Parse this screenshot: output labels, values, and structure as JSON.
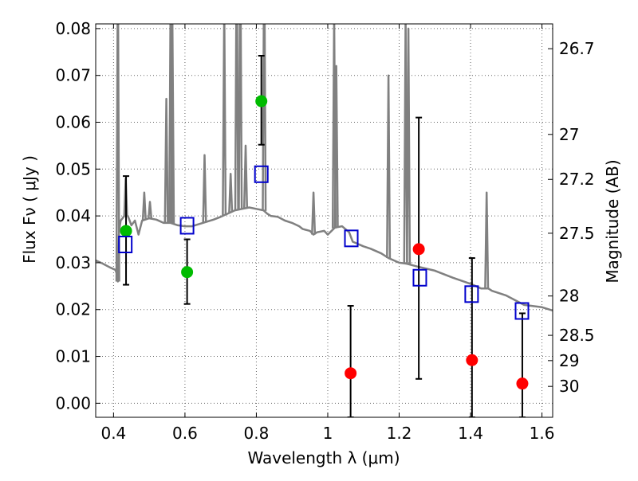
{
  "chart_data": {
    "type": "scatter",
    "title": "",
    "xlabel": "Wavelength  λ (μm)",
    "ylabel": "Flux  Fν  ( μJy )",
    "ylabel_right": "Magnitude (AB)",
    "xlim": [
      0.35,
      1.63
    ],
    "ylim": [
      -0.003,
      0.081
    ],
    "grid": true,
    "x_ticks": [
      0.4,
      0.6,
      0.8,
      1.0,
      1.2,
      1.4,
      1.6
    ],
    "x_tick_labels": [
      "0.4",
      "0.6",
      "0.8",
      "1",
      "1.2",
      "1.4",
      "1.6"
    ],
    "y_ticks": [
      0.0,
      0.01,
      0.02,
      0.03,
      0.04,
      0.05,
      0.06,
      0.07,
      0.08
    ],
    "y_tick_labels": [
      "0.00",
      "0.01",
      "0.02",
      "0.03",
      "0.04",
      "0.05",
      "0.06",
      "0.07",
      "0.08"
    ],
    "right_ticks": [
      {
        "label": "26.7",
        "flux": 0.0757
      },
      {
        "label": "27",
        "flux": 0.0574
      },
      {
        "label": "27.2",
        "flux": 0.0478
      },
      {
        "label": "27.5",
        "flux": 0.0363
      },
      {
        "label": "28",
        "flux": 0.0229
      },
      {
        "label": "28.5",
        "flux": 0.0145
      },
      {
        "label": "29",
        "flux": 0.0091
      },
      {
        "label": "30",
        "flux": 0.0036
      }
    ],
    "colors": {
      "template": "#808080",
      "model": "#0000cc",
      "detection": "#00bb00",
      "upper": "#ff0000",
      "errorbar": "#000000",
      "grid": "#666666"
    },
    "series": [
      {
        "kind": "detection",
        "points": [
          {
            "x": 0.435,
            "y": 0.0368,
            "ylo": 0.0253,
            "yhi": 0.0485
          },
          {
            "x": 0.606,
            "y": 0.028,
            "ylo": 0.0212,
            "yhi": 0.035
          },
          {
            "x": 0.814,
            "y": 0.0645,
            "ylo": 0.0552,
            "yhi": 0.0742
          }
        ]
      },
      {
        "kind": "upper",
        "points": [
          {
            "x": 1.064,
            "y": 0.0064,
            "ylo": -0.003,
            "yhi": 0.0208
          },
          {
            "x": 1.255,
            "y": 0.0329,
            "ylo": 0.0052,
            "yhi": 0.061
          },
          {
            "x": 1.404,
            "y": 0.0092,
            "ylo": -0.003,
            "yhi": 0.031
          },
          {
            "x": 1.545,
            "y": 0.0042,
            "ylo": -0.003,
            "yhi": 0.0192
          }
        ]
      },
      {
        "kind": "model",
        "points": [
          {
            "x": 0.433,
            "y": 0.0339
          },
          {
            "x": 0.606,
            "y": 0.0379
          },
          {
            "x": 0.814,
            "y": 0.0489
          },
          {
            "x": 1.066,
            "y": 0.0352
          },
          {
            "x": 1.258,
            "y": 0.0268
          },
          {
            "x": 1.403,
            "y": 0.0233
          },
          {
            "x": 1.544,
            "y": 0.0197
          }
        ]
      },
      {
        "kind": "template",
        "line": [
          [
            0.35,
            0.0305
          ],
          [
            0.37,
            0.0298
          ],
          [
            0.39,
            0.029
          ],
          [
            0.405,
            0.0285
          ],
          [
            0.41,
            0.0275
          ],
          [
            0.412,
            0.026
          ],
          [
            0.413,
            0.029
          ],
          [
            0.415,
            0.036
          ],
          [
            0.418,
            0.038
          ],
          [
            0.42,
            0.039
          ],
          [
            0.425,
            0.0395
          ],
          [
            0.43,
            0.04
          ],
          [
            0.44,
            0.04
          ],
          [
            0.45,
            0.038
          ],
          [
            0.46,
            0.039
          ],
          [
            0.47,
            0.036
          ],
          [
            0.48,
            0.039
          ],
          [
            0.5,
            0.0395
          ],
          [
            0.52,
            0.0392
          ],
          [
            0.54,
            0.0385
          ],
          [
            0.56,
            0.0385
          ],
          [
            0.58,
            0.038
          ],
          [
            0.6,
            0.0378
          ],
          [
            0.62,
            0.0378
          ],
          [
            0.65,
            0.0385
          ],
          [
            0.68,
            0.0392
          ],
          [
            0.7,
            0.0398
          ],
          [
            0.72,
            0.0405
          ],
          [
            0.74,
            0.0412
          ],
          [
            0.76,
            0.0415
          ],
          [
            0.78,
            0.0418
          ],
          [
            0.8,
            0.0415
          ],
          [
            0.82,
            0.0412
          ],
          [
            0.83,
            0.0405
          ],
          [
            0.84,
            0.04
          ],
          [
            0.86,
            0.0398
          ],
          [
            0.88,
            0.039
          ],
          [
            0.9,
            0.0385
          ],
          [
            0.92,
            0.0378
          ],
          [
            0.93,
            0.0372
          ],
          [
            0.95,
            0.0368
          ],
          [
            0.96,
            0.036
          ],
          [
            0.97,
            0.0365
          ],
          [
            0.99,
            0.0368
          ],
          [
            1.0,
            0.036
          ],
          [
            1.02,
            0.0375
          ],
          [
            1.04,
            0.0378
          ],
          [
            1.06,
            0.0365
          ],
          [
            1.07,
            0.0345
          ],
          [
            1.1,
            0.0335
          ],
          [
            1.12,
            0.033
          ],
          [
            1.15,
            0.032
          ],
          [
            1.17,
            0.031
          ],
          [
            1.2,
            0.03
          ],
          [
            1.22,
            0.0298
          ],
          [
            1.25,
            0.0292
          ],
          [
            1.3,
            0.0283
          ],
          [
            1.35,
            0.0268
          ],
          [
            1.4,
            0.0255
          ],
          [
            1.43,
            0.0245
          ],
          [
            1.45,
            0.0245
          ],
          [
            1.46,
            0.024
          ],
          [
            1.5,
            0.023
          ],
          [
            1.55,
            0.021
          ],
          [
            1.6,
            0.0205
          ],
          [
            1.63,
            0.0198
          ]
        ],
        "emission_lines": [
          [
            0.412,
            0.095
          ],
          [
            0.434,
            0.048
          ],
          [
            0.486,
            0.045
          ],
          [
            0.502,
            0.043
          ],
          [
            0.548,
            0.065
          ],
          [
            0.56,
            0.09
          ],
          [
            0.565,
            0.081
          ],
          [
            0.655,
            0.053
          ],
          [
            0.71,
            0.085
          ],
          [
            0.728,
            0.049
          ],
          [
            0.745,
            0.1
          ],
          [
            0.755,
            0.1
          ],
          [
            0.77,
            0.055
          ],
          [
            0.822,
            0.1
          ],
          [
            0.96,
            0.045
          ],
          [
            1.018,
            0.083
          ],
          [
            1.024,
            0.072
          ],
          [
            1.17,
            0.07
          ],
          [
            1.218,
            0.083
          ],
          [
            1.226,
            0.08
          ],
          [
            1.445,
            0.045
          ]
        ]
      }
    ]
  }
}
